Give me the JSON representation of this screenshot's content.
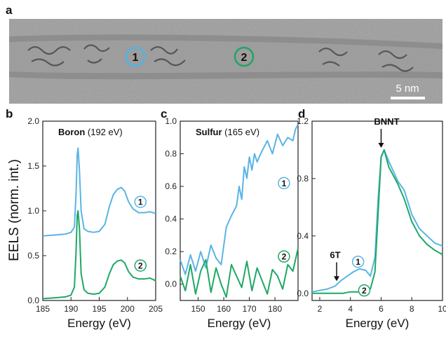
{
  "panel_labels": [
    "a",
    "b",
    "c",
    "d"
  ],
  "micrograph": {
    "scale_bar_label": "5 nm",
    "markers": [
      {
        "label": "1",
        "color": "#4fb3e8"
      },
      {
        "label": "2",
        "color": "#20a565"
      }
    ]
  },
  "shared_ylabel": "EELS (norm. int.)",
  "colors": {
    "series_1": "#5ab4e5",
    "series_2": "#1fa866"
  },
  "chart_data": [
    {
      "type": "line",
      "panel": "b",
      "title_bold": "Boron",
      "title_rest": "(192 eV)",
      "xlabel": "Energy (eV)",
      "ylabel": "EELS (norm. int.)",
      "xlim": [
        185,
        205
      ],
      "ylim": [
        0,
        2.0
      ],
      "xticks": [
        185,
        190,
        195,
        200,
        205
      ],
      "yticks": [
        "0.0",
        "0.5",
        "1.0",
        "1.5",
        "2.0"
      ],
      "series": [
        {
          "marker": "1",
          "color": "#5ab4e5",
          "x": [
            185,
            187,
            189,
            190,
            190.6,
            190.9,
            191.1,
            191.25,
            191.5,
            191.8,
            192.3,
            193,
            194,
            195,
            196,
            196.8,
            197.5,
            198.2,
            198.9,
            199.5,
            200.2,
            201,
            202,
            203,
            204,
            205
          ],
          "y": [
            0.72,
            0.73,
            0.74,
            0.76,
            0.82,
            1.2,
            1.62,
            1.7,
            1.45,
            1.0,
            0.8,
            0.77,
            0.76,
            0.77,
            0.85,
            1.05,
            1.18,
            1.24,
            1.26,
            1.22,
            1.1,
            1.02,
            0.98,
            0.98,
            0.99,
            0.97
          ]
        },
        {
          "marker": "2",
          "color": "#1fa866",
          "x": [
            185,
            187,
            189,
            190,
            190.6,
            190.9,
            191.1,
            191.25,
            191.5,
            191.8,
            192.3,
            193,
            194,
            195,
            196,
            196.8,
            197.5,
            198.2,
            198.9,
            199.5,
            200.2,
            201,
            202,
            203,
            204,
            205
          ],
          "y": [
            0.02,
            0.03,
            0.04,
            0.06,
            0.15,
            0.55,
            0.95,
            1.0,
            0.8,
            0.3,
            0.12,
            0.08,
            0.07,
            0.08,
            0.15,
            0.3,
            0.4,
            0.44,
            0.45,
            0.42,
            0.32,
            0.26,
            0.24,
            0.24,
            0.25,
            0.22
          ]
        }
      ]
    },
    {
      "type": "line",
      "panel": "c",
      "title_bold": "Sulfur",
      "title_rest": "(165 eV)",
      "xlabel": "Energy (eV)",
      "ylabel": "",
      "xlim": [
        143,
        189
      ],
      "ylim": [
        -0.1,
        1.0
      ],
      "xticks": [
        150,
        160,
        170,
        180
      ],
      "yticks": [
        "0.0",
        "0.2",
        "0.4",
        "0.6",
        "0.8",
        "1.0"
      ],
      "series": [
        {
          "marker": "1",
          "color": "#5ab4e5",
          "x": [
            143,
            145,
            147,
            149,
            151,
            153,
            155,
            157,
            159,
            161,
            163,
            165,
            166,
            167,
            168,
            169,
            170,
            171,
            172,
            173,
            175,
            177,
            179,
            181,
            183,
            185,
            187,
            188,
            189
          ],
          "y": [
            0.15,
            0.06,
            0.18,
            0.08,
            0.2,
            0.1,
            0.24,
            0.16,
            0.12,
            0.35,
            0.42,
            0.48,
            0.6,
            0.52,
            0.72,
            0.65,
            0.78,
            0.7,
            0.8,
            0.75,
            0.82,
            0.88,
            0.8,
            0.92,
            0.85,
            0.9,
            0.88,
            0.95,
            0.98
          ]
        },
        {
          "marker": "2",
          "color": "#1fa866",
          "x": [
            143,
            145,
            147,
            149,
            151,
            153,
            155,
            157,
            159,
            161,
            163,
            165,
            167,
            169,
            171,
            173,
            175,
            177,
            179,
            181,
            183,
            185,
            187,
            189
          ],
          "y": [
            0.05,
            -0.04,
            0.12,
            -0.06,
            0.08,
            0.15,
            -0.05,
            0.1,
            0.0,
            -0.08,
            0.12,
            0.05,
            -0.02,
            0.14,
            -0.04,
            0.1,
            0.02,
            -0.06,
            0.09,
            0.05,
            -0.03,
            0.12,
            0.08,
            0.22
          ]
        }
      ]
    },
    {
      "type": "line",
      "panel": "d",
      "title_bold": "",
      "title_rest": "",
      "xlabel": "Energy (eV)",
      "ylabel": "",
      "xlim": [
        1.5,
        10
      ],
      "ylim": [
        -0.05,
        1.2
      ],
      "xticks": [
        2,
        4,
        6,
        8,
        10
      ],
      "yticks": [
        "0.0",
        "0.4",
        "0.8",
        "1.2"
      ],
      "annotations": [
        {
          "text": "BNNT",
          "x": 6.0,
          "y": 1.0
        },
        {
          "text": "6T",
          "x": 3.1,
          "y": 0.07
        }
      ],
      "series": [
        {
          "marker": "1",
          "color": "#5ab4e5",
          "x": [
            1.5,
            2,
            2.5,
            3,
            3.4,
            3.8,
            4.2,
            4.6,
            5.0,
            5.3,
            5.6,
            5.8,
            6.0,
            6.2,
            6.5,
            6.8,
            7.1,
            7.5,
            8.0,
            8.5,
            9.0,
            9.5,
            10
          ],
          "y": [
            0.01,
            0.02,
            0.03,
            0.05,
            0.09,
            0.12,
            0.15,
            0.17,
            0.16,
            0.12,
            0.25,
            0.65,
            0.95,
            1.0,
            0.92,
            0.85,
            0.78,
            0.72,
            0.55,
            0.45,
            0.4,
            0.35,
            0.33
          ]
        },
        {
          "marker": "2",
          "color": "#1fa866",
          "x": [
            1.5,
            2,
            2.5,
            3,
            3.5,
            4,
            4.5,
            5.0,
            5.3,
            5.6,
            5.8,
            6.0,
            6.2,
            6.5,
            6.8,
            7.1,
            7.5,
            8.0,
            8.5,
            9.0,
            9.5,
            10
          ],
          "y": [
            0.0,
            0.0,
            0.0,
            0.0,
            0.0,
            0.01,
            0.01,
            0.02,
            0.03,
            0.15,
            0.55,
            0.95,
            1.0,
            0.88,
            0.82,
            0.76,
            0.66,
            0.5,
            0.4,
            0.34,
            0.3,
            0.27
          ]
        }
      ]
    }
  ]
}
